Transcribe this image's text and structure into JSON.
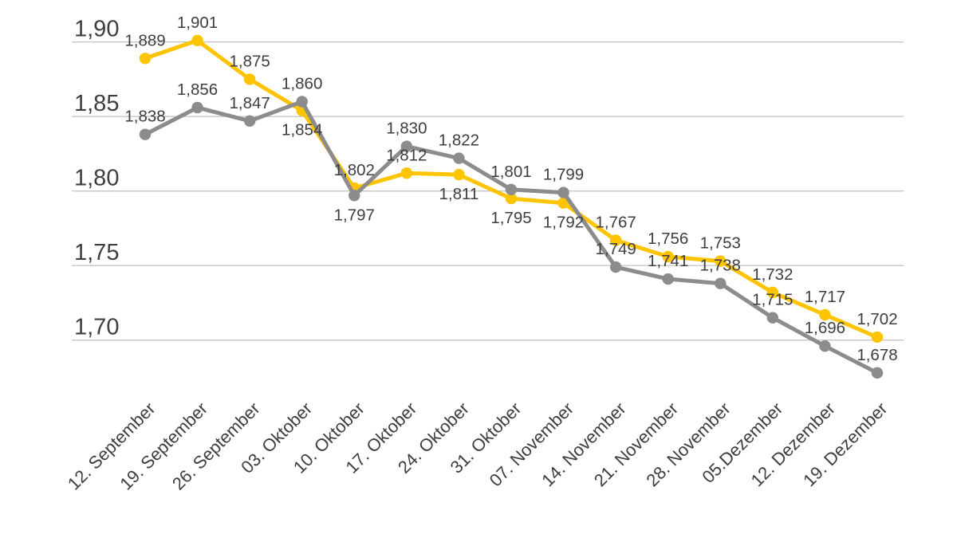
{
  "chart_data": {
    "type": "line",
    "title": "",
    "xlabel": "",
    "ylabel": "",
    "grid": true,
    "legend": "none",
    "categories": [
      "12. September",
      "19. September",
      "26. September",
      "03. Oktober",
      "10. Oktober",
      "17. Oktober",
      "24. Oktober",
      "31. Oktober",
      "07. November",
      "14. November",
      "21. November",
      "28. November",
      "05.Dezember",
      "12. Dezember",
      "19. Dezember"
    ],
    "series": [
      {
        "name": "yellow-series",
        "color": "#FFC400",
        "values": [
          1.889,
          1.901,
          1.875,
          1.854,
          1.802,
          1.812,
          1.811,
          1.795,
          1.792,
          1.767,
          1.756,
          1.753,
          1.732,
          1.717,
          1.702
        ],
        "labels": [
          "1,889",
          "1,901",
          "1,875",
          "1,854",
          "1,802",
          "1,812",
          "1,811",
          "1,795",
          "1,792",
          "1,767",
          "1,756",
          "1,753",
          "1,732",
          "1,717",
          "1,702"
        ],
        "label_positions": [
          "above",
          "above",
          "above",
          "below",
          "above",
          "above",
          "below",
          "below",
          "below",
          "above",
          "above",
          "above",
          "above",
          "above",
          "above"
        ]
      },
      {
        "name": "gray-series",
        "color": "#8C8C8C",
        "values": [
          1.838,
          1.856,
          1.847,
          1.86,
          1.797,
          1.83,
          1.822,
          1.801,
          1.799,
          1.749,
          1.741,
          1.738,
          1.715,
          1.696,
          1.678
        ],
        "labels": [
          "1,838",
          "1,856",
          "1,847",
          "1,860",
          "1,797",
          "1,830",
          "1,822",
          "1,801",
          "1,799",
          "1,749",
          "1,741",
          "1,738",
          "1,715",
          "1,696",
          "1,678"
        ],
        "label_positions": [
          "above",
          "above",
          "above",
          "above",
          "below",
          "above",
          "above",
          "above",
          "above",
          "above",
          "above",
          "above",
          "above",
          "above",
          "above"
        ]
      }
    ],
    "y_axis": {
      "ticks": [
        "1,90",
        "1,85",
        "1,80",
        "1,75",
        "1,70"
      ],
      "tick_values": [
        1.9,
        1.85,
        1.8,
        1.75,
        1.7
      ],
      "min": 1.7,
      "max": 1.9
    }
  },
  "colors": {
    "background": "#ffffff",
    "gridline": "#C6C6C6",
    "axis_text": "#3E3E3E",
    "data_label_text": "#3E3E3E",
    "series_yellow": "#FFC400",
    "series_gray": "#8C8C8C"
  }
}
